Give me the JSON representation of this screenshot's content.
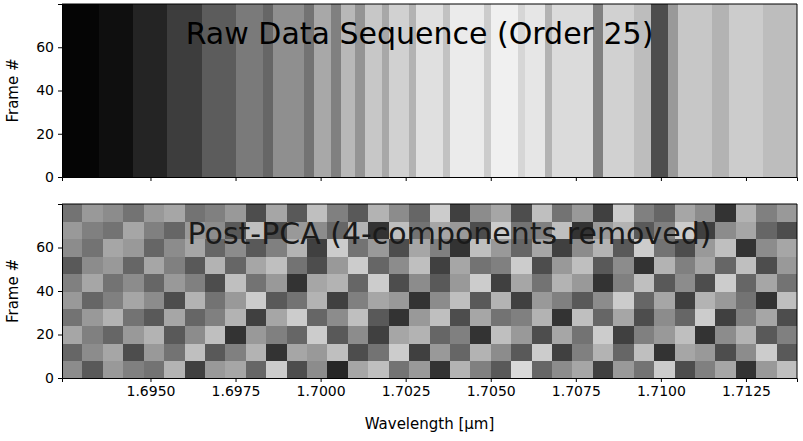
{
  "chart_data": [
    {
      "type": "heatmap",
      "title": "Raw Data Sequence (Order 25)",
      "ylabel": "Frame #",
      "xlim": [
        1.6924,
        1.714
      ],
      "ylim": [
        0,
        80
      ],
      "xticks": [
        1.695,
        1.6975,
        1.7,
        1.7025,
        1.705,
        1.7075,
        1.71,
        1.7125
      ],
      "yticks": [
        0,
        20,
        40,
        60
      ],
      "tick_labels": "y",
      "clim": [
        0,
        1
      ],
      "cells": {
        "x_edges": [
          1.6924,
          1.6935,
          1.6945,
          1.6955,
          1.6965,
          1.6975,
          1.6983,
          1.6986,
          1.6995,
          1.6998,
          1.7003,
          1.7006,
          1.701,
          1.7013,
          1.7018,
          1.702,
          1.7026,
          1.7028,
          1.7036,
          1.7038,
          1.7048,
          1.705,
          1.7058,
          1.706,
          1.7066,
          1.7068,
          1.708,
          1.7083,
          1.7092,
          1.7097,
          1.7102,
          1.7105,
          1.7115,
          1.712,
          1.713,
          1.714
        ],
        "y_edges": [
          0,
          80
        ],
        "values": [
          [
            0.02,
            0.06,
            0.14,
            0.24,
            0.36,
            0.48,
            0.4,
            0.56,
            0.45,
            0.66,
            0.5,
            0.72,
            0.58,
            0.78,
            0.66,
            0.82,
            0.7,
            0.88,
            0.76,
            0.92,
            0.8,
            0.94,
            0.84,
            0.9,
            0.7,
            0.86,
            0.5,
            0.82,
            0.74,
            0.3,
            0.6,
            0.78,
            0.7,
            0.8,
            0.74
          ]
        ]
      }
    },
    {
      "type": "heatmap",
      "title": "Post-PCA (4-components removed)",
      "ylabel": "Frame #",
      "xlabel": "Wavelength [μm]",
      "xlim": [
        1.6924,
        1.714
      ],
      "ylim": [
        0,
        80
      ],
      "xticks": [
        {
          "value": 1.695,
          "label": "1.6950"
        },
        {
          "value": 1.6975,
          "label": "1.6975"
        },
        {
          "value": 1.7,
          "label": "1.7000"
        },
        {
          "value": 1.7025,
          "label": "1.7025"
        },
        {
          "value": 1.705,
          "label": "1.7050"
        },
        {
          "value": 1.7075,
          "label": "1.7075"
        },
        {
          "value": 1.71,
          "label": "1.7100"
        },
        {
          "value": 1.7125,
          "label": "1.7125"
        }
      ],
      "yticks": [
        0,
        20,
        40,
        60
      ],
      "clim": [
        -1,
        1
      ],
      "cells": {
        "x_edges": [
          1.6924,
          1.693,
          1.6936,
          1.6942,
          1.6948,
          1.6954,
          1.696,
          1.6966,
          1.6972,
          1.6978,
          1.6984,
          1.699,
          1.6996,
          1.7002,
          1.7008,
          1.7014,
          1.702,
          1.7026,
          1.7032,
          1.7038,
          1.7044,
          1.705,
          1.7056,
          1.7062,
          1.7068,
          1.7074,
          1.708,
          1.7086,
          1.7092,
          1.7098,
          1.7104,
          1.711,
          1.7116,
          1.7122,
          1.7128,
          1.7134,
          1.714
        ],
        "y_edges": [
          0,
          8,
          16,
          24,
          32,
          40,
          48,
          56,
          64,
          72,
          80
        ],
        "values": [
          [
            0.1,
            -0.3,
            0.2,
            0.0,
            -0.1,
            0.4,
            -0.5,
            0.2,
            0.3,
            -0.2,
            0.6,
            -0.4,
            0.1,
            -0.7,
            0.3,
            0.5,
            -0.1,
            0.2,
            -0.6,
            0.4,
            0.0,
            -0.3,
            0.7,
            -0.2,
            0.1,
            0.3,
            -0.5,
            0.2,
            -0.1,
            0.6,
            -0.4,
            0.0,
            0.3,
            -0.6,
            0.2,
            0.5
          ],
          [
            -0.2,
            0.1,
            0.3,
            -0.4,
            0.2,
            -0.1,
            0.5,
            -0.3,
            0.0,
            0.4,
            -0.6,
            0.3,
            0.2,
            0.5,
            -0.4,
            -0.1,
            0.6,
            -0.5,
            0.2,
            -0.2,
            0.4,
            0.1,
            -0.3,
            0.6,
            -0.5,
            0.0,
            0.4,
            -0.2,
            0.5,
            -0.6,
            0.3,
            0.2,
            -0.4,
            0.1,
            0.6,
            -0.3
          ],
          [
            0.3,
            0.0,
            -0.2,
            0.2,
            0.4,
            -0.3,
            0.1,
            0.5,
            -0.6,
            0.2,
            0.0,
            -0.2,
            0.6,
            -0.3,
            0.1,
            -0.5,
            0.3,
            0.4,
            -0.2,
            0.0,
            -0.6,
            0.5,
            0.2,
            -0.4,
            0.3,
            -0.1,
            0.6,
            -0.5,
            0.0,
            0.2,
            0.5,
            -0.6,
            0.1,
            0.4,
            -0.3,
            0.0
          ],
          [
            -0.1,
            0.2,
            0.4,
            -0.1,
            -0.3,
            0.3,
            -0.2,
            0.0,
            0.4,
            -0.5,
            0.3,
            0.6,
            -0.2,
            0.1,
            0.5,
            -0.3,
            -0.6,
            0.2,
            0.5,
            -0.4,
            0.3,
            -0.1,
            0.0,
            0.4,
            -0.6,
            0.5,
            -0.2,
            0.3,
            -0.4,
            0.1,
            -0.2,
            0.6,
            -0.5,
            0.0,
            0.3,
            -0.4
          ],
          [
            0.2,
            -0.2,
            0.0,
            0.3,
            0.1,
            -0.4,
            0.4,
            -0.1,
            0.2,
            0.6,
            -0.3,
            -0.1,
            0.4,
            -0.5,
            0.0,
            0.3,
            0.2,
            -0.6,
            0.1,
            0.5,
            -0.3,
            0.4,
            -0.5,
            0.2,
            0.0,
            -0.3,
            0.1,
            0.6,
            -0.2,
            0.3,
            -0.5,
            0.4,
            0.2,
            -0.1,
            -0.6,
            0.5
          ],
          [
            0.0,
            0.3,
            -0.1,
            0.1,
            -0.2,
            0.2,
            0.0,
            -0.4,
            0.5,
            -0.1,
            0.2,
            -0.6,
            0.3,
            0.4,
            -0.2,
            0.6,
            -0.4,
            0.1,
            -0.3,
            0.2,
            0.6,
            -0.5,
            0.3,
            -0.1,
            0.4,
            0.2,
            -0.6,
            0.0,
            0.5,
            -0.3,
            0.1,
            -0.4,
            0.6,
            -0.2,
            0.3,
            -0.1
          ],
          [
            -0.3,
            0.1,
            0.2,
            -0.2,
            0.3,
            0.0,
            -0.3,
            0.4,
            -0.2,
            0.3,
            0.5,
            -0.1,
            -0.4,
            0.2,
            0.6,
            -0.2,
            0.1,
            0.5,
            -0.5,
            0.3,
            -0.1,
            0.0,
            0.6,
            -0.4,
            0.2,
            0.5,
            -0.3,
            0.1,
            -0.6,
            0.4,
            0.0,
            0.3,
            -0.2,
            0.5,
            -0.4,
            0.2
          ],
          [
            0.1,
            -0.1,
            0.3,
            0.2,
            -0.2,
            0.1,
            0.3,
            -0.2,
            0.1,
            -0.3,
            0.0,
            0.4,
            -0.5,
            0.6,
            -0.1,
            0.2,
            -0.4,
            0.3,
            0.0,
            -0.6,
            0.5,
            0.2,
            -0.2,
            0.3,
            -0.5,
            0.1,
            0.4,
            -0.3,
            0.6,
            -0.1,
            -0.4,
            0.2,
            0.5,
            -0.6,
            0.1,
            0.3
          ],
          [
            0.2,
            0.0,
            -0.1,
            0.3,
            0.0,
            -0.2,
            0.2,
            0.1,
            -0.3,
            0.5,
            -0.4,
            0.2,
            0.1,
            -0.2,
            0.4,
            -0.6,
            0.5,
            -0.1,
            0.3,
            0.2,
            -0.4,
            0.6,
            -0.1,
            0.0,
            0.5,
            -0.6,
            0.2,
            0.4,
            -0.3,
            0.0,
            0.6,
            -0.5,
            0.1,
            0.3,
            -0.2,
            -0.4
          ],
          [
            -0.1,
            0.2,
            0.1,
            -0.1,
            0.2,
            0.3,
            -0.1,
            0.0,
            0.2,
            -0.4,
            0.3,
            -0.3,
            0.5,
            0.0,
            -0.3,
            0.4,
            0.1,
            -0.2,
            0.6,
            -0.5,
            0.1,
            0.3,
            -0.4,
            0.5,
            -0.1,
            0.2,
            -0.5,
            0.6,
            0.0,
            -0.2,
            0.3,
            0.1,
            -0.6,
            0.4,
            0.0,
            0.2
          ]
        ]
      }
    }
  ]
}
